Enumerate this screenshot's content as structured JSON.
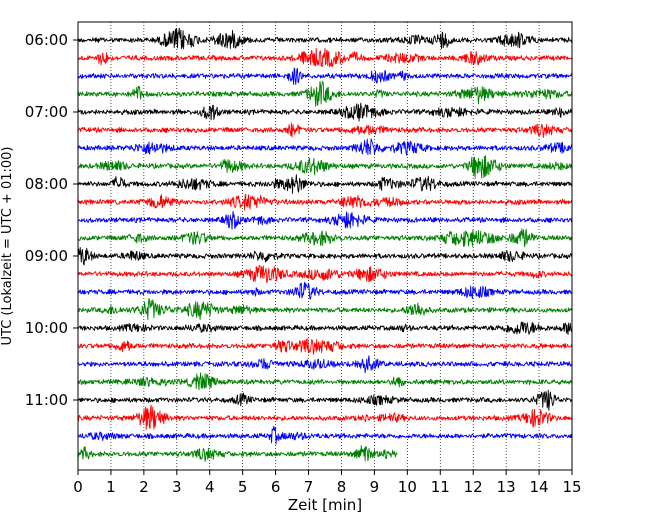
{
  "chart_data": {
    "type": "line",
    "title": "",
    "xlabel": "Zeit  [min]",
    "ylabel": "UTC (Lokalzeit = UTC + 01:00)",
    "xlim": [
      0,
      15
    ],
    "x_ticks": [
      "0",
      "1",
      "2",
      "3",
      "4",
      "5",
      "6",
      "7",
      "8",
      "9",
      "10",
      "11",
      "12",
      "13",
      "14",
      "15"
    ],
    "y_tick_labels": [
      "06:00",
      "07:00",
      "08:00",
      "09:00",
      "10:00",
      "11:00"
    ],
    "grid": "vertical dotted lines at each minute",
    "legend": "none",
    "trace_colors": [
      "#000000",
      "#ff0000",
      "#0000ff",
      "#008000"
    ],
    "trace_interval_minutes": 15,
    "traces": [
      {
        "start": "06:00",
        "color": "#000000",
        "end_min": 15
      },
      {
        "start": "06:15",
        "color": "#ff0000",
        "end_min": 15
      },
      {
        "start": "06:30",
        "color": "#0000ff",
        "end_min": 15
      },
      {
        "start": "06:45",
        "color": "#008000",
        "end_min": 15
      },
      {
        "start": "07:00",
        "color": "#000000",
        "end_min": 15
      },
      {
        "start": "07:15",
        "color": "#ff0000",
        "end_min": 15
      },
      {
        "start": "07:30",
        "color": "#0000ff",
        "end_min": 15
      },
      {
        "start": "07:45",
        "color": "#008000",
        "end_min": 15
      },
      {
        "start": "08:00",
        "color": "#000000",
        "end_min": 15
      },
      {
        "start": "08:15",
        "color": "#ff0000",
        "end_min": 15
      },
      {
        "start": "08:30",
        "color": "#0000ff",
        "end_min": 15
      },
      {
        "start": "08:45",
        "color": "#008000",
        "end_min": 15
      },
      {
        "start": "09:00",
        "color": "#000000",
        "end_min": 15
      },
      {
        "start": "09:15",
        "color": "#ff0000",
        "end_min": 15
      },
      {
        "start": "09:30",
        "color": "#0000ff",
        "end_min": 15
      },
      {
        "start": "09:45",
        "color": "#008000",
        "end_min": 15
      },
      {
        "start": "10:00",
        "color": "#000000",
        "end_min": 15
      },
      {
        "start": "10:15",
        "color": "#ff0000",
        "end_min": 15
      },
      {
        "start": "10:30",
        "color": "#0000ff",
        "end_min": 15
      },
      {
        "start": "10:45",
        "color": "#008000",
        "end_min": 15
      },
      {
        "start": "11:00",
        "color": "#000000",
        "end_min": 15
      },
      {
        "start": "11:15",
        "color": "#ff0000",
        "end_min": 15
      },
      {
        "start": "11:30",
        "color": "#0000ff",
        "end_min": 15
      },
      {
        "start": "11:45",
        "color": "#008000",
        "end_min": 9.7
      }
    ]
  }
}
